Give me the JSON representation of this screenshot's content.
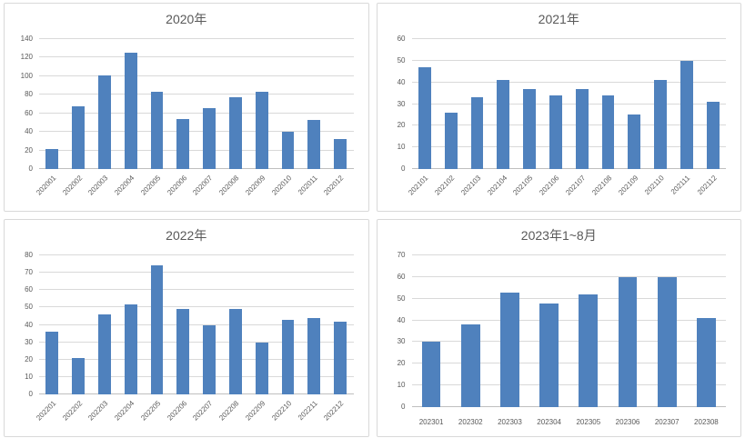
{
  "chart_data": [
    {
      "type": "bar",
      "title": "2020年",
      "categories": [
        "202001",
        "202002",
        "202003",
        "202004",
        "202005",
        "202006",
        "202007",
        "202008",
        "202009",
        "202010",
        "202011",
        "202012"
      ],
      "values": [
        22,
        68,
        101,
        125,
        83,
        54,
        66,
        77,
        83,
        40,
        53,
        32
      ],
      "xlabel": "",
      "ylabel": "",
      "ylim": [
        0,
        140
      ],
      "ystep": 20,
      "grid": true,
      "legend": "none",
      "x_label_rotation": 45,
      "bar_color": "#4F81BD"
    },
    {
      "type": "bar",
      "title": "2021年",
      "categories": [
        "202101",
        "202102",
        "202103",
        "202104",
        "202105",
        "202106",
        "202107",
        "202108",
        "202109",
        "202110",
        "202111",
        "202112"
      ],
      "values": [
        47,
        26,
        33,
        41,
        37,
        34,
        37,
        34,
        25,
        41,
        50,
        31
      ],
      "xlabel": "",
      "ylabel": "",
      "ylim": [
        0,
        60
      ],
      "ystep": 10,
      "grid": true,
      "legend": "none",
      "x_label_rotation": 45,
      "bar_color": "#4F81BD"
    },
    {
      "type": "bar",
      "title": "2022年",
      "categories": [
        "202201",
        "202202",
        "202203",
        "202204",
        "202205",
        "202206",
        "202207",
        "202208",
        "202209",
        "202210",
        "202211",
        "202212"
      ],
      "values": [
        36,
        21,
        46,
        52,
        74,
        49,
        40,
        49,
        30,
        43,
        44,
        42
      ],
      "xlabel": "",
      "ylabel": "",
      "ylim": [
        0,
        80
      ],
      "ystep": 10,
      "grid": true,
      "legend": "none",
      "x_label_rotation": 45,
      "bar_color": "#4F81BD"
    },
    {
      "type": "bar",
      "title": "2023年1~8月",
      "categories": [
        "202301",
        "202302",
        "202303",
        "202304",
        "202305",
        "202306",
        "202307",
        "202308"
      ],
      "values": [
        30,
        38,
        53,
        48,
        52,
        60,
        60,
        41
      ],
      "xlabel": "",
      "ylabel": "",
      "ylim": [
        0,
        70
      ],
      "ystep": 10,
      "grid": true,
      "legend": "none",
      "x_label_rotation": 0,
      "bar_color": "#4F81BD"
    }
  ],
  "colors": {
    "bar": "#4F81BD",
    "gridline": "#d9d9d9",
    "axis_line": "#bfbfbf",
    "text": "#595959",
    "panel_border": "#d9d9d9"
  }
}
